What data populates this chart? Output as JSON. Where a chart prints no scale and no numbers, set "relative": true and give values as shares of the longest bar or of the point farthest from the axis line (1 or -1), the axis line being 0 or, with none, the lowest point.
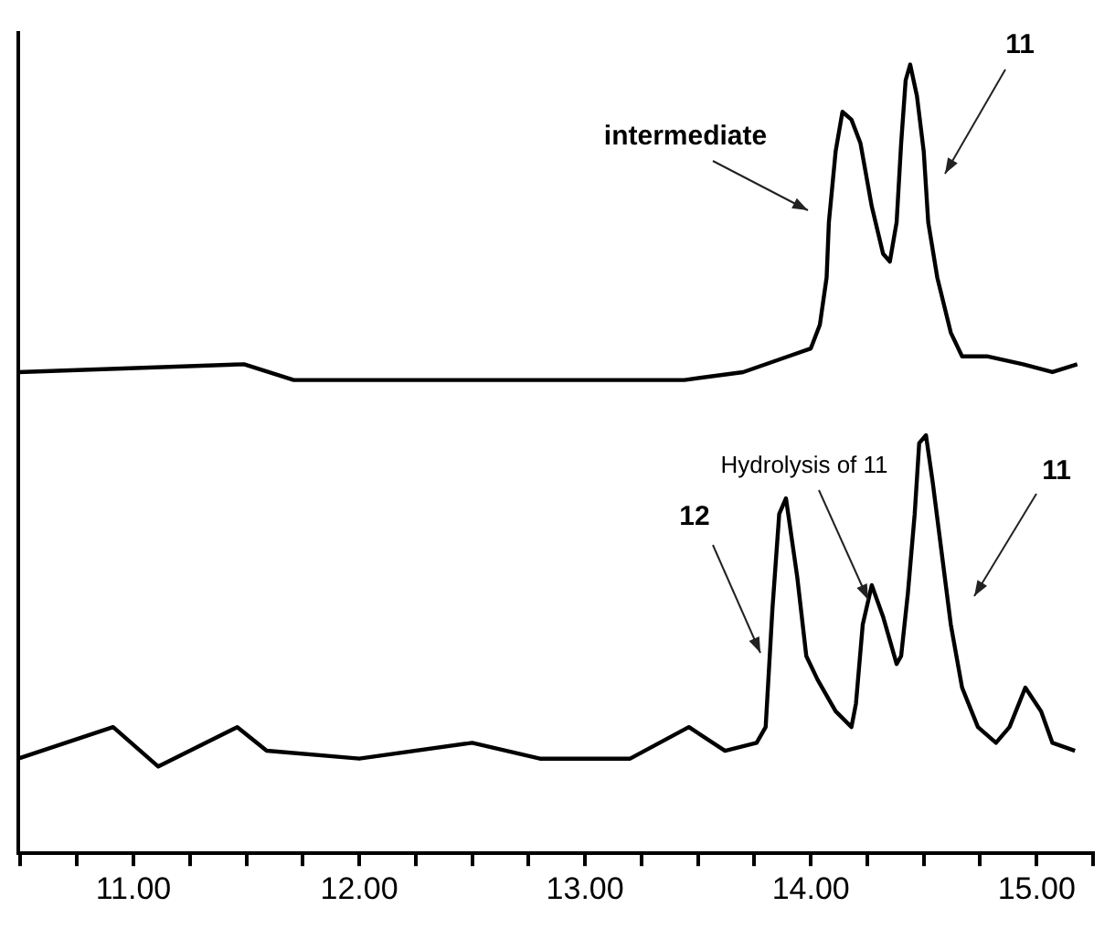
{
  "chart_data": {
    "type": "line",
    "relative": true,
    "grid": false,
    "legend": false,
    "marker": "none",
    "line_style": "solid",
    "xlim": [
      10.49,
      15.25
    ],
    "xticks": [
      {
        "value": 10.5,
        "label": null
      },
      {
        "value": 10.75,
        "label": null
      },
      {
        "value": 11,
        "label": "11.00"
      },
      {
        "value": 11.25,
        "label": null
      },
      {
        "value": 11.5,
        "label": null
      },
      {
        "value": 11.75,
        "label": null
      },
      {
        "value": 12,
        "label": "12.00"
      },
      {
        "value": 12.25,
        "label": null
      },
      {
        "value": 12.5,
        "label": null
      },
      {
        "value": 12.75,
        "label": null
      },
      {
        "value": 13,
        "label": "13.00"
      },
      {
        "value": 13.25,
        "label": null
      },
      {
        "value": 13.5,
        "label": null
      },
      {
        "value": 13.75,
        "label": null
      },
      {
        "value": 14,
        "label": "14.00"
      },
      {
        "value": 14.25,
        "label": null
      },
      {
        "value": 14.5,
        "label": null
      },
      {
        "value": 14.75,
        "label": null
      },
      {
        "value": 15,
        "label": "15.00"
      },
      {
        "value": 15.25,
        "label": null
      }
    ],
    "series": [
      {
        "color": "#000000",
        "x": [
          10.49,
          11.49,
          11.71,
          12.4,
          13.44,
          13.7,
          13.9,
          14.0,
          14.04,
          14.07,
          14.08,
          14.11,
          14.14,
          14.18,
          14.22,
          14.27,
          14.32,
          14.35,
          14.38,
          14.4,
          14.42,
          14.44,
          14.47,
          14.5,
          14.52,
          14.56,
          14.62,
          14.67,
          14.78,
          14.94,
          15.07,
          15.18
        ],
        "values": [
          0.61,
          0.62,
          0.6,
          0.6,
          0.6,
          0.61,
          0.63,
          0.64,
          0.67,
          0.73,
          0.8,
          0.89,
          0.94,
          0.93,
          0.9,
          0.82,
          0.76,
          0.75,
          0.8,
          0.9,
          0.98,
          1.0,
          0.96,
          0.89,
          0.8,
          0.73,
          0.66,
          0.63,
          0.63,
          0.62,
          0.61,
          0.62
        ]
      },
      {
        "color": "#000000",
        "x": [
          10.49,
          10.91,
          11.11,
          11.46,
          11.59,
          12.0,
          12.5,
          12.8,
          13.2,
          13.46,
          13.62,
          13.76,
          13.8,
          13.83,
          13.86,
          13.89,
          13.94,
          13.98,
          14.03,
          14.11,
          14.18,
          14.2,
          14.23,
          14.27,
          14.32,
          14.38,
          14.4,
          14.43,
          14.46,
          14.48,
          14.51,
          14.54,
          14.58,
          14.62,
          14.67,
          14.74,
          14.82,
          14.88,
          14.95,
          15.02,
          15.07,
          15.17
        ],
        "values": [
          0.12,
          0.16,
          0.11,
          0.16,
          0.13,
          0.12,
          0.14,
          0.12,
          0.12,
          0.16,
          0.13,
          0.14,
          0.16,
          0.31,
          0.43,
          0.45,
          0.35,
          0.25,
          0.22,
          0.18,
          0.16,
          0.19,
          0.29,
          0.34,
          0.3,
          0.24,
          0.25,
          0.33,
          0.43,
          0.52,
          0.53,
          0.47,
          0.38,
          0.29,
          0.21,
          0.16,
          0.14,
          0.16,
          0.21,
          0.18,
          0.14,
          0.13
        ]
      }
    ],
    "annotations": [
      "intermediate",
      "11",
      "Hydrolysis of 11",
      "12",
      "11"
    ]
  }
}
